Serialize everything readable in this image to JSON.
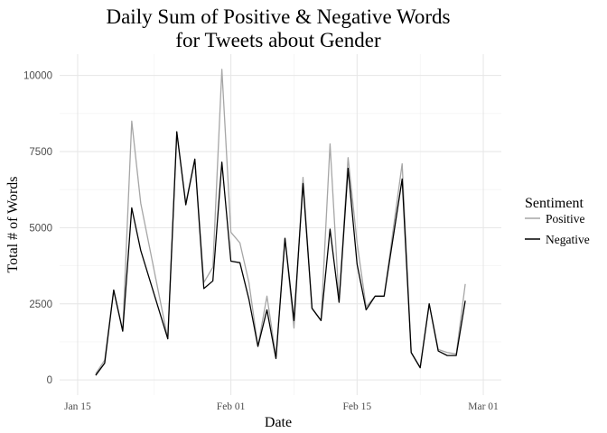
{
  "chart_data": {
    "type": "line",
    "title_lines": [
      "Daily Sum of Positive & Negative Words",
      "for Tweets about Gender"
    ],
    "xlabel": "Date",
    "ylabel": "Total # of Words",
    "y_ticks": [
      0,
      2500,
      5000,
      7500,
      10000
    ],
    "x_ticks": [
      {
        "date": "2018-01-15",
        "label": "Jan 15"
      },
      {
        "date": "2018-02-01",
        "label": "Feb 01"
      },
      {
        "date": "2018-02-15",
        "label": "Feb 15"
      },
      {
        "date": "2018-03-01",
        "label": "Mar 01"
      }
    ],
    "xlim": [
      "2018-01-13",
      "2018-03-03"
    ],
    "ylim": [
      -500,
      10700
    ],
    "grid": true,
    "legend": {
      "title": "Sentiment",
      "position": "right"
    },
    "dates": [
      "2018-01-17",
      "2018-01-18",
      "2018-01-19",
      "2018-01-20",
      "2018-01-21",
      "2018-01-22",
      "2018-01-25",
      "2018-01-26",
      "2018-01-27",
      "2018-01-28",
      "2018-01-29",
      "2018-01-30",
      "2018-01-31",
      "2018-02-01",
      "2018-02-02",
      "2018-02-03",
      "2018-02-04",
      "2018-02-05",
      "2018-02-06",
      "2018-02-07",
      "2018-02-08",
      "2018-02-09",
      "2018-02-10",
      "2018-02-11",
      "2018-02-12",
      "2018-02-13",
      "2018-02-14",
      "2018-02-15",
      "2018-02-16",
      "2018-02-17",
      "2018-02-18",
      "2018-02-20",
      "2018-02-21",
      "2018-02-22",
      "2018-02-23",
      "2018-02-24",
      "2018-02-25",
      "2018-02-26",
      "2018-02-27"
    ],
    "series": [
      {
        "name": "Positive",
        "color": "#a6a6a6",
        "values": [
          200,
          650,
          2950,
          1600,
          8500,
          5800,
          1350,
          8100,
          5800,
          7250,
          3200,
          3700,
          10200,
          4850,
          4500,
          3200,
          1100,
          2750,
          750,
          4650,
          1700,
          6650,
          2350,
          1950,
          7750,
          2550,
          7300,
          4500,
          2400,
          2750,
          2750,
          7100,
          900,
          400,
          2500,
          1000,
          900,
          850,
          3150
        ]
      },
      {
        "name": "Negative",
        "color": "#000000",
        "values": [
          150,
          550,
          2950,
          1600,
          5650,
          4250,
          1350,
          8150,
          5750,
          7250,
          3000,
          3250,
          7150,
          3900,
          3850,
          2650,
          1100,
          2300,
          700,
          4650,
          1950,
          6450,
          2350,
          1950,
          4950,
          2550,
          6950,
          3800,
          2300,
          2750,
          2750,
          6600,
          900,
          400,
          2500,
          950,
          800,
          800,
          2600
        ]
      }
    ]
  }
}
